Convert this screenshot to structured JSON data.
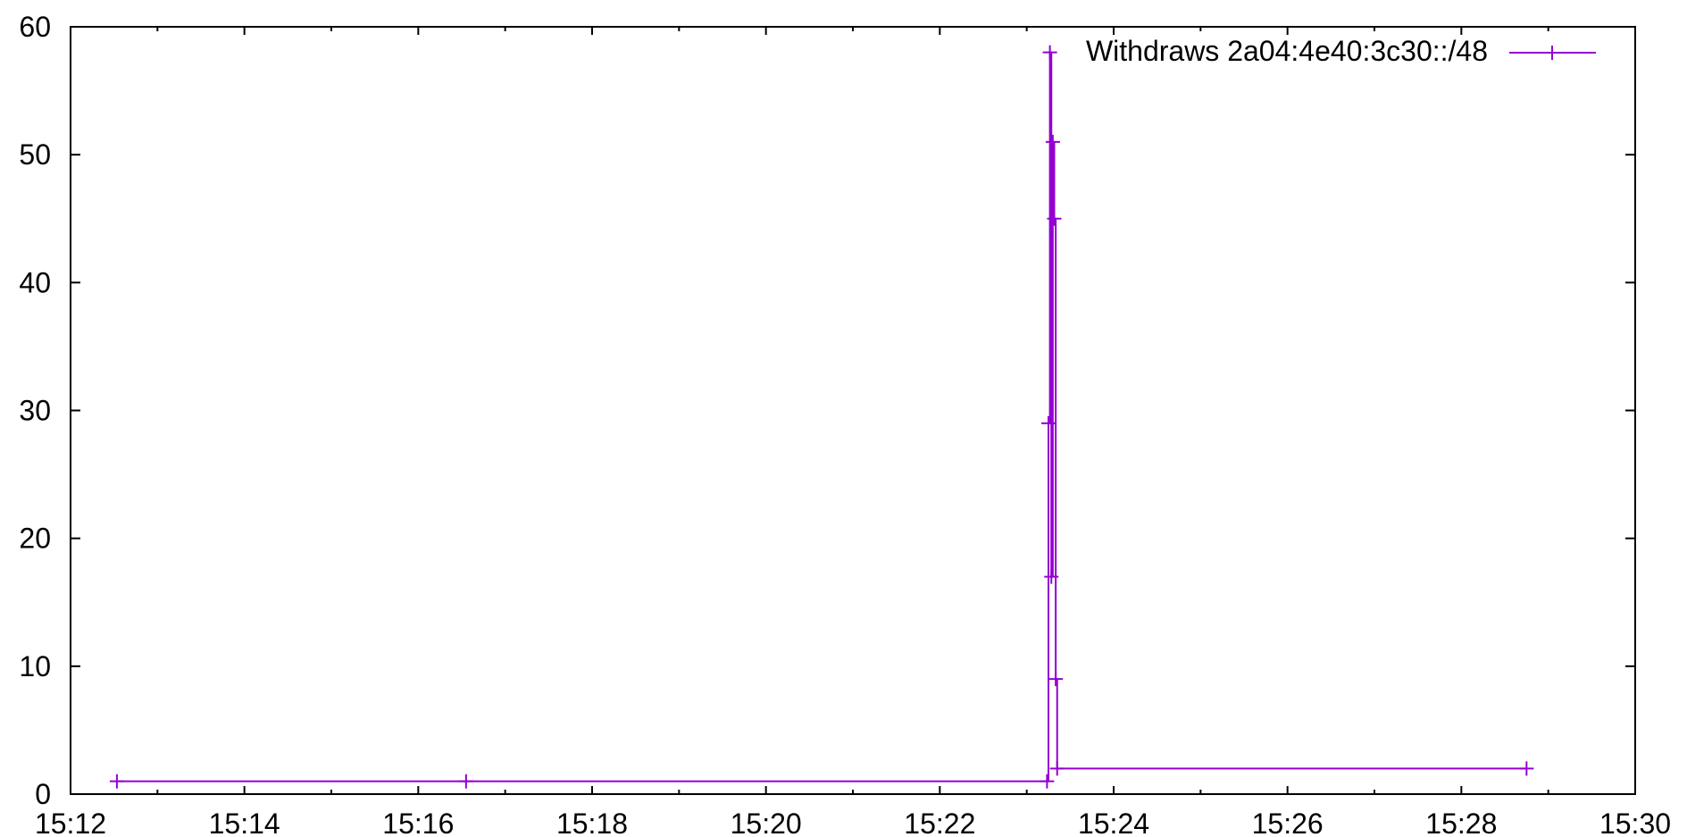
{
  "chart_data": {
    "type": "line",
    "title": "",
    "xlabel": "",
    "ylabel": "",
    "x_axis": {
      "kind": "time",
      "range": [
        "15:12",
        "15:30"
      ],
      "ticks": [
        "15:12",
        "15:14",
        "15:16",
        "15:18",
        "15:20",
        "15:22",
        "15:24",
        "15:26",
        "15:28",
        "15:30"
      ]
    },
    "y_axis": {
      "range": [
        0,
        60
      ],
      "ticks": [
        "0",
        "10",
        "20",
        "30",
        "40",
        "50",
        "60"
      ]
    },
    "grid": false,
    "legend": {
      "placement": "top-right"
    },
    "series": [
      {
        "name": "Withdraws 2a04:4e40:3c30::/48",
        "color": "#9400d3",
        "marker": "plus",
        "style": "steps",
        "points": [
          {
            "x": "15:12:32",
            "y": 1
          },
          {
            "x": "15:16:33",
            "y": 1
          },
          {
            "x": "15:23:14",
            "y": 1
          },
          {
            "x": "15:23:15",
            "y": 29
          },
          {
            "x": "15:23:16",
            "y": 58
          },
          {
            "x": "15:23:17",
            "y": 17
          },
          {
            "x": "15:23:18",
            "y": 51
          },
          {
            "x": "15:23:19",
            "y": 45
          },
          {
            "x": "15:23:20",
            "y": 9
          },
          {
            "x": "15:23:21",
            "y": 2
          },
          {
            "x": "15:28:45",
            "y": 2
          }
        ]
      }
    ]
  }
}
